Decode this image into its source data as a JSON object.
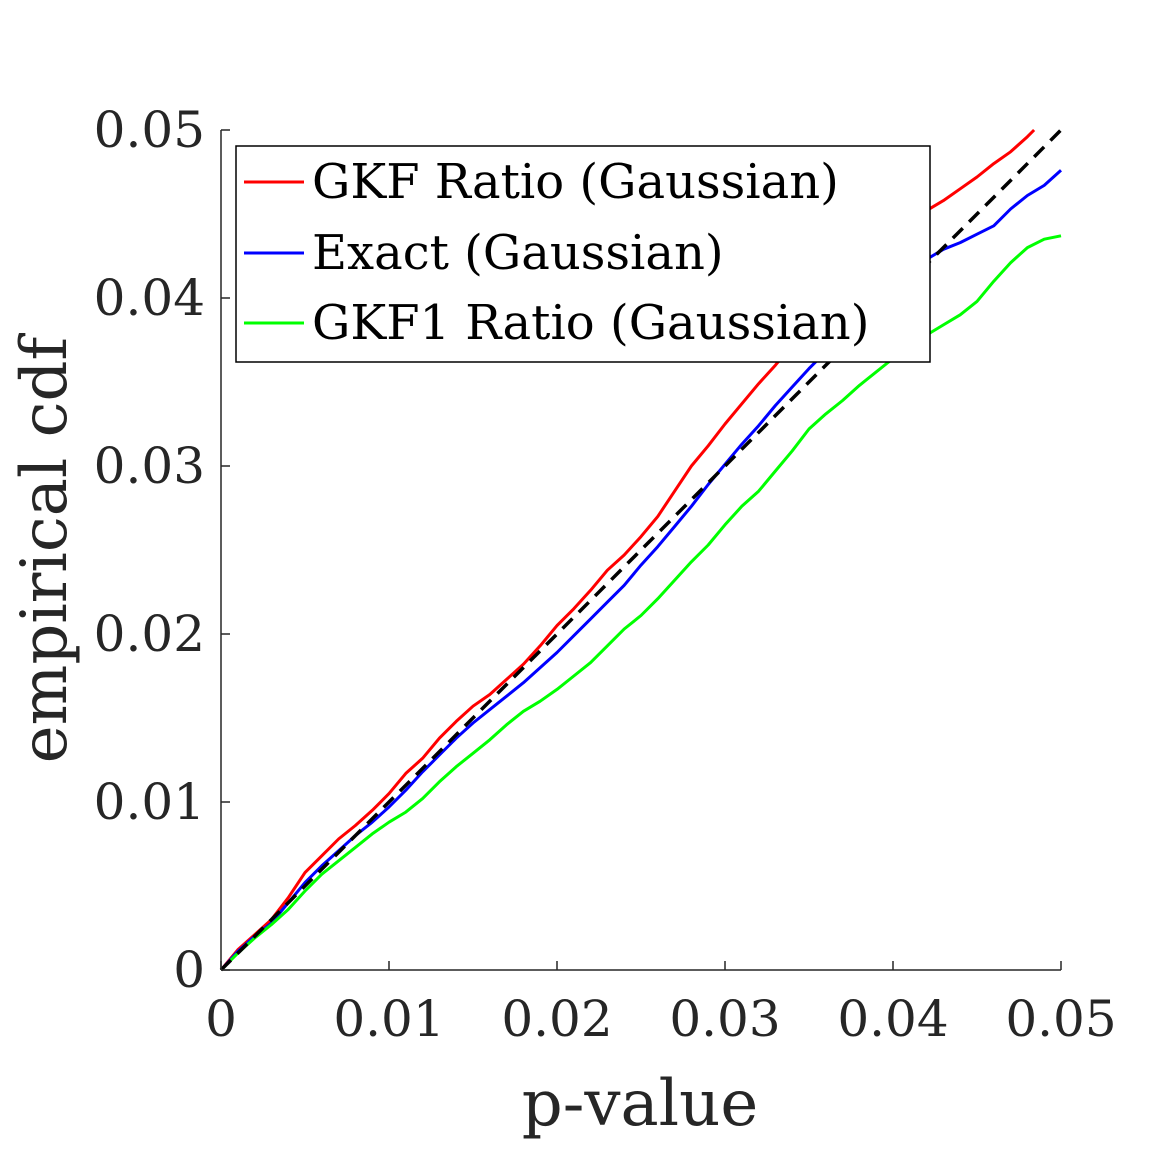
{
  "chart_data": {
    "type": "line",
    "xlabel": "p-value",
    "ylabel": "empirical cdf",
    "xlim": [
      0,
      0.05
    ],
    "ylim": [
      0,
      0.05
    ],
    "xticks": [
      "0",
      "0.01",
      "0.02",
      "0.03",
      "0.04",
      "0.05"
    ],
    "yticks": [
      "0",
      "0.01",
      "0.02",
      "0.03",
      "0.04",
      "0.05"
    ],
    "grid": false,
    "legend_position": "top-left",
    "reference_line": {
      "style": "dashed",
      "color": "#000000",
      "x": [
        0,
        0.05
      ],
      "y": [
        0,
        0.05
      ]
    },
    "series": [
      {
        "name": "GKF Ratio (Gaussian)",
        "color": "#ff0000",
        "x": [
          0,
          0.001,
          0.002,
          0.003,
          0.004,
          0.005,
          0.006,
          0.007,
          0.008,
          0.009,
          0.01,
          0.011,
          0.012,
          0.013,
          0.014,
          0.015,
          0.016,
          0.017,
          0.018,
          0.019,
          0.02,
          0.021,
          0.022,
          0.023,
          0.024,
          0.025,
          0.026,
          0.027,
          0.028,
          0.029,
          0.03,
          0.031,
          0.032,
          0.033,
          0.034,
          0.035,
          0.036,
          0.037,
          0.038,
          0.039,
          0.04,
          0.041,
          0.042,
          0.043,
          0.044,
          0.045,
          0.046,
          0.047,
          0.048,
          0.0484
        ],
        "y": [
          0,
          0.0012,
          0.0021,
          0.003,
          0.0043,
          0.0058,
          0.0068,
          0.0078,
          0.0086,
          0.0095,
          0.0105,
          0.0117,
          0.0126,
          0.0138,
          0.0148,
          0.0157,
          0.0164,
          0.0173,
          0.0182,
          0.0193,
          0.0205,
          0.0215,
          0.0226,
          0.0238,
          0.0247,
          0.0258,
          0.027,
          0.0285,
          0.03,
          0.0312,
          0.0325,
          0.0337,
          0.0349,
          0.036,
          0.0372,
          0.0383,
          0.0394,
          0.0405,
          0.0416,
          0.0427,
          0.0437,
          0.0445,
          0.0452,
          0.0458,
          0.0465,
          0.0472,
          0.048,
          0.0487,
          0.0496,
          0.05
        ]
      },
      {
        "name": "Exact (Gaussian)",
        "color": "#0000ff",
        "x": [
          0,
          0.001,
          0.002,
          0.003,
          0.004,
          0.005,
          0.006,
          0.007,
          0.008,
          0.009,
          0.01,
          0.011,
          0.012,
          0.013,
          0.014,
          0.015,
          0.016,
          0.017,
          0.018,
          0.019,
          0.02,
          0.021,
          0.022,
          0.023,
          0.024,
          0.025,
          0.026,
          0.027,
          0.028,
          0.029,
          0.03,
          0.031,
          0.032,
          0.033,
          0.034,
          0.035,
          0.036,
          0.037,
          0.038,
          0.039,
          0.04,
          0.041,
          0.042,
          0.043,
          0.044,
          0.045,
          0.046,
          0.047,
          0.048,
          0.049,
          0.05
        ],
        "y": [
          0,
          0.0011,
          0.002,
          0.0028,
          0.004,
          0.0052,
          0.0062,
          0.0071,
          0.008,
          0.0088,
          0.0097,
          0.0107,
          0.0118,
          0.0128,
          0.0138,
          0.0147,
          0.0155,
          0.0163,
          0.0171,
          0.018,
          0.0189,
          0.0199,
          0.0209,
          0.0219,
          0.0229,
          0.0241,
          0.0252,
          0.0264,
          0.0276,
          0.0289,
          0.0301,
          0.0313,
          0.0324,
          0.0336,
          0.0347,
          0.0358,
          0.0368,
          0.0379,
          0.0389,
          0.0398,
          0.0407,
          0.0416,
          0.0423,
          0.0429,
          0.0433,
          0.0438,
          0.0443,
          0.0453,
          0.0461,
          0.0467,
          0.0476
        ]
      },
      {
        "name": "GKF1 Ratio (Gaussian)",
        "color": "#00ff00",
        "x": [
          0,
          0.001,
          0.002,
          0.003,
          0.004,
          0.005,
          0.006,
          0.007,
          0.008,
          0.009,
          0.01,
          0.011,
          0.012,
          0.013,
          0.014,
          0.015,
          0.016,
          0.017,
          0.018,
          0.019,
          0.02,
          0.021,
          0.022,
          0.023,
          0.024,
          0.025,
          0.026,
          0.027,
          0.028,
          0.029,
          0.03,
          0.031,
          0.032,
          0.033,
          0.034,
          0.035,
          0.036,
          0.037,
          0.038,
          0.039,
          0.04,
          0.041,
          0.042,
          0.043,
          0.044,
          0.045,
          0.046,
          0.047,
          0.048,
          0.049,
          0.05
        ],
        "y": [
          0,
          0.001,
          0.0019,
          0.0027,
          0.0036,
          0.0047,
          0.0057,
          0.0065,
          0.0073,
          0.0081,
          0.0088,
          0.0094,
          0.0102,
          0.0112,
          0.0121,
          0.0129,
          0.0137,
          0.0146,
          0.0154,
          0.016,
          0.0167,
          0.0175,
          0.0183,
          0.0193,
          0.0203,
          0.0211,
          0.0221,
          0.0232,
          0.0243,
          0.0253,
          0.0265,
          0.0276,
          0.0285,
          0.0297,
          0.0309,
          0.0322,
          0.0331,
          0.0339,
          0.0348,
          0.0356,
          0.0364,
          0.0372,
          0.0378,
          0.0384,
          0.039,
          0.0398,
          0.041,
          0.0421,
          0.043,
          0.0435,
          0.0437
        ]
      }
    ]
  }
}
